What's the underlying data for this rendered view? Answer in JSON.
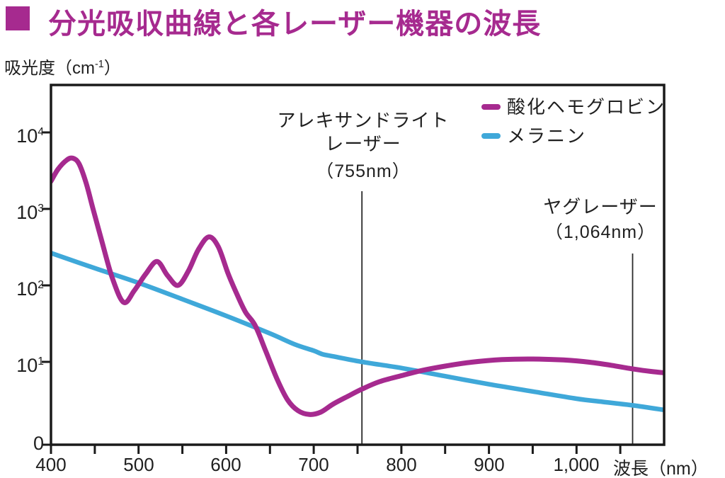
{
  "title": {
    "text": "分光吸収曲線と各レーザー機器の波長"
  },
  "colors": {
    "accent": "#A62A8F",
    "axis": "#1a1a1a",
    "text": "#1f1f1f"
  },
  "y_axis": {
    "unit_prefix": "吸光度（cm",
    "unit_exponent": "-1",
    "unit_suffix": "）",
    "tick_labels": [
      {
        "base": "10",
        "exp": "4"
      },
      {
        "base": "10",
        "exp": "3"
      },
      {
        "base": "10",
        "exp": "2"
      },
      {
        "base": "10",
        "exp": "1"
      }
    ],
    "zero_label": "0"
  },
  "x_axis": {
    "tick_labels": [
      "400",
      "500",
      "600",
      "700",
      "800",
      "900",
      "1,000"
    ],
    "title": "波長（nm）"
  },
  "chart_data": {
    "type": "line",
    "title": "分光吸収曲線と各レーザー機器の波長",
    "xlabel": "波長（nm）",
    "ylabel": "吸光度（cm-1）",
    "x_range": [
      400,
      1100
    ],
    "x_tick_step": 50,
    "x_label_values": [
      400,
      500,
      600,
      700,
      800,
      900,
      1000
    ],
    "y_scale": "log",
    "y_tick_values": [
      10,
      100,
      1000,
      10000
    ],
    "y_axis_bottom_label": "0",
    "grid": false,
    "legend_position": "top-right",
    "series": [
      {
        "name": "酸化ヘモグロビン",
        "color": "#A62A8F",
        "points": [
          [
            400,
            2300
          ],
          [
            408,
            3300
          ],
          [
            418,
            4350
          ],
          [
            425,
            4600
          ],
          [
            432,
            3900
          ],
          [
            440,
            2200
          ],
          [
            448,
            1000
          ],
          [
            458,
            380
          ],
          [
            470,
            125
          ],
          [
            483,
            60
          ],
          [
            495,
            85
          ],
          [
            508,
            140
          ],
          [
            521,
            205
          ],
          [
            533,
            135
          ],
          [
            545,
            100
          ],
          [
            557,
            155
          ],
          [
            568,
            290
          ],
          [
            580,
            430
          ],
          [
            591,
            320
          ],
          [
            602,
            145
          ],
          [
            612,
            78
          ],
          [
            622,
            45
          ],
          [
            633,
            30
          ],
          [
            645,
            14
          ],
          [
            658,
            6
          ],
          [
            670,
            3.2
          ],
          [
            682,
            2.3
          ],
          [
            695,
            2.05
          ],
          [
            708,
            2.2
          ],
          [
            722,
            2.8
          ],
          [
            738,
            3.5
          ],
          [
            755,
            4.4
          ],
          [
            775,
            5.5
          ],
          [
            800,
            6.6
          ],
          [
            823,
            7.7
          ],
          [
            850,
            8.8
          ],
          [
            880,
            9.9
          ],
          [
            915,
            10.7
          ],
          [
            950,
            10.9
          ],
          [
            985,
            10.6
          ],
          [
            1015,
            9.9
          ],
          [
            1040,
            9.0
          ],
          [
            1064,
            8.1
          ],
          [
            1085,
            7.5
          ],
          [
            1100,
            7.2
          ]
        ]
      },
      {
        "name": "メラニン",
        "color": "#3FA8D9",
        "points": [
          [
            400,
            265
          ],
          [
            450,
            168
          ],
          [
            500,
            108
          ],
          [
            550,
            66
          ],
          [
            600,
            40
          ],
          [
            650,
            23.5
          ],
          [
            678,
            17
          ],
          [
            700,
            14
          ],
          [
            710,
            12.6
          ],
          [
            722,
            11.8
          ],
          [
            755,
            10
          ],
          [
            800,
            8.3
          ],
          [
            850,
            6.5
          ],
          [
            900,
            5.1
          ],
          [
            950,
            4.1
          ],
          [
            1000,
            3.3
          ],
          [
            1030,
            3.0
          ],
          [
            1064,
            2.7
          ],
          [
            1100,
            2.35
          ]
        ]
      }
    ],
    "annotations": [
      {
        "x_nm": 755,
        "label_lines": [
          "アレキサンドライト",
          "レーザー",
          "（755nm）"
        ]
      },
      {
        "x_nm": 1064,
        "label_lines": [
          "ヤグレーザー",
          "（1,064nm）"
        ]
      }
    ]
  }
}
